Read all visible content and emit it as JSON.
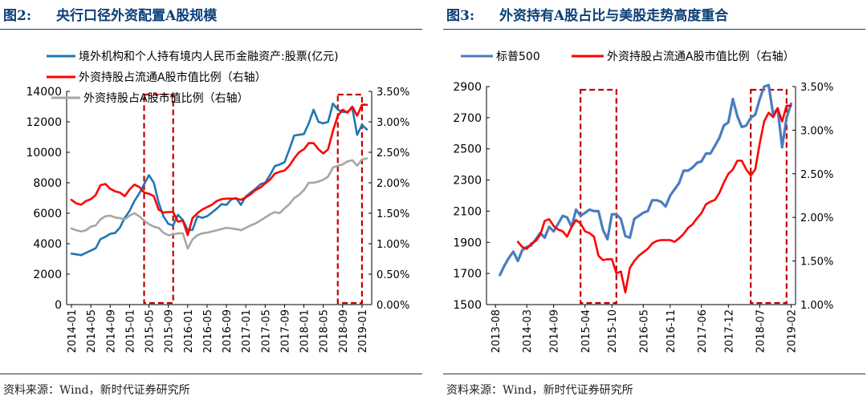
{
  "left": {
    "fig_label": "图2:",
    "title": "央行口径外资配置A股规模",
    "source": "资料来源：Wind，新时代证券研究所",
    "chart_data": {
      "type": "line",
      "x_ticks": [
        "2014-01",
        "2014-05",
        "2014-09",
        "2015-01",
        "2015-05",
        "2015-09",
        "2016-01",
        "2016-05",
        "2016-09",
        "2017-01",
        "2017-05",
        "2017-09",
        "2018-01",
        "2018-05",
        "2018-09",
        "2019-01"
      ],
      "ylim_left": [
        0,
        14000
      ],
      "y_ticks_left": [
        "0",
        "2000",
        "4000",
        "6000",
        "8000",
        "10000",
        "12000",
        "14000"
      ],
      "ylim_right": [
        0,
        3.5
      ],
      "y_ticks_right": [
        "0.00%",
        "0.50%",
        "1.00%",
        "1.50%",
        "2.00%",
        "2.50%",
        "3.00%",
        "3.50%"
      ],
      "series": [
        {
          "name": "境外机构和个人持有境内人民币金融资产:股票(亿元)",
          "color": "#1f77b4",
          "axis": "left",
          "x": [
            "2014-01",
            "2014-02",
            "2014-03",
            "2014-04",
            "2014-05",
            "2014-06",
            "2014-07",
            "2014-08",
            "2014-09",
            "2014-10",
            "2014-11",
            "2014-12",
            "2015-01",
            "2015-02",
            "2015-03",
            "2015-04",
            "2015-05",
            "2015-06",
            "2015-07",
            "2015-08",
            "2015-09",
            "2015-10",
            "2015-11",
            "2015-12",
            "2016-01",
            "2016-02",
            "2016-03",
            "2016-04",
            "2016-05",
            "2016-06",
            "2016-07",
            "2016-08",
            "2016-09",
            "2016-10",
            "2016-11",
            "2016-12",
            "2017-01",
            "2017-02",
            "2017-03",
            "2017-04",
            "2017-05",
            "2017-06",
            "2017-07",
            "2017-08",
            "2017-09",
            "2017-10",
            "2017-11",
            "2017-12",
            "2018-01",
            "2018-02",
            "2018-03",
            "2018-04",
            "2018-05",
            "2018-06",
            "2018-07",
            "2018-08",
            "2018-09",
            "2018-10",
            "2018-11",
            "2018-12",
            "2019-01",
            "2019-02"
          ],
          "values": [
            3350,
            3300,
            3250,
            3400,
            3550,
            3700,
            4300,
            4450,
            4650,
            4700,
            5050,
            5700,
            6150,
            6800,
            7300,
            7900,
            8500,
            8000,
            6700,
            5800,
            5300,
            5200,
            5900,
            5550,
            4900,
            4900,
            5800,
            5700,
            5800,
            6050,
            6300,
            6600,
            6550,
            6900,
            7000,
            6550,
            7100,
            7350,
            7600,
            7900,
            8000,
            8500,
            9100,
            9200,
            9350,
            10200,
            11100,
            11150,
            11200,
            11900,
            12800,
            12000,
            11900,
            12000,
            13200,
            12800,
            12650,
            12650,
            12900,
            11150,
            11800,
            11500
          ]
        },
        {
          "name": "外资持股占流通A股市值比例（右轴）",
          "color": "#ff0000",
          "axis": "right",
          "x": [
            "2014-01",
            "2014-02",
            "2014-03",
            "2014-04",
            "2014-05",
            "2014-06",
            "2014-07",
            "2014-08",
            "2014-09",
            "2014-10",
            "2014-11",
            "2014-12",
            "2015-01",
            "2015-02",
            "2015-03",
            "2015-04",
            "2015-05",
            "2015-06",
            "2015-07",
            "2015-08",
            "2015-09",
            "2015-10",
            "2015-11",
            "2015-12",
            "2016-01",
            "2016-02",
            "2016-03",
            "2016-04",
            "2016-05",
            "2016-06",
            "2016-07",
            "2016-08",
            "2016-09",
            "2016-10",
            "2016-11",
            "2016-12",
            "2017-01",
            "2017-02",
            "2017-03",
            "2017-04",
            "2017-05",
            "2017-06",
            "2017-07",
            "2017-08",
            "2017-09",
            "2017-10",
            "2017-11",
            "2017-12",
            "2018-01",
            "2018-02",
            "2018-03",
            "2018-04",
            "2018-05",
            "2018-06",
            "2018-07",
            "2018-08",
            "2018-09",
            "2018-10",
            "2018-11",
            "2018-12",
            "2019-01",
            "2019-02"
          ],
          "values": [
            1.72,
            1.66,
            1.64,
            1.7,
            1.73,
            1.8,
            1.96,
            1.98,
            1.9,
            1.86,
            1.84,
            1.78,
            1.89,
            1.97,
            1.93,
            1.84,
            1.82,
            1.78,
            1.56,
            1.51,
            1.52,
            1.52,
            1.36,
            1.38,
            1.14,
            1.42,
            1.5,
            1.56,
            1.6,
            1.64,
            1.7,
            1.73,
            1.74,
            1.74,
            1.74,
            1.72,
            1.76,
            1.81,
            1.88,
            1.92,
            1.99,
            2.05,
            2.15,
            2.18,
            2.2,
            2.28,
            2.4,
            2.5,
            2.55,
            2.65,
            2.65,
            2.55,
            2.48,
            2.55,
            2.85,
            3.1,
            3.2,
            3.15,
            3.25,
            3.1,
            3.28,
            3.28
          ]
        },
        {
          "name": "外资持股占A股市值比例（右轴）",
          "color": "#a6a6a6",
          "axis": "right",
          "x": [
            "2014-01",
            "2014-02",
            "2014-03",
            "2014-04",
            "2014-05",
            "2014-06",
            "2014-07",
            "2014-08",
            "2014-09",
            "2014-10",
            "2014-11",
            "2014-12",
            "2015-01",
            "2015-02",
            "2015-03",
            "2015-04",
            "2015-05",
            "2015-06",
            "2015-07",
            "2015-08",
            "2015-09",
            "2015-10",
            "2015-11",
            "2015-12",
            "2016-01",
            "2016-02",
            "2016-03",
            "2016-04",
            "2016-05",
            "2016-06",
            "2016-07",
            "2016-08",
            "2016-09",
            "2016-10",
            "2016-11",
            "2016-12",
            "2017-01",
            "2017-02",
            "2017-03",
            "2017-04",
            "2017-05",
            "2017-06",
            "2017-07",
            "2017-08",
            "2017-09",
            "2017-10",
            "2017-11",
            "2017-12",
            "2018-01",
            "2018-02",
            "2018-03",
            "2018-04",
            "2018-05",
            "2018-06",
            "2018-07",
            "2018-08",
            "2018-09",
            "2018-10",
            "2018-11",
            "2018-12",
            "2019-01",
            "2019-02"
          ],
          "values": [
            1.25,
            1.22,
            1.2,
            1.22,
            1.28,
            1.3,
            1.4,
            1.45,
            1.46,
            1.43,
            1.42,
            1.4,
            1.46,
            1.5,
            1.45,
            1.38,
            1.32,
            1.28,
            1.26,
            1.18,
            1.14,
            1.15,
            1.17,
            1.17,
            0.92,
            1.07,
            1.14,
            1.17,
            1.18,
            1.2,
            1.22,
            1.24,
            1.26,
            1.25,
            1.24,
            1.22,
            1.26,
            1.3,
            1.33,
            1.38,
            1.43,
            1.48,
            1.52,
            1.5,
            1.58,
            1.65,
            1.75,
            1.8,
            1.88,
            2.0,
            2.0,
            2.02,
            2.05,
            2.1,
            2.25,
            2.28,
            2.3,
            2.35,
            2.37,
            2.28,
            2.38,
            2.4
          ]
        }
      ],
      "annotations": [
        {
          "type": "dashed-rect",
          "x_from": "2015-04",
          "x_to": "2015-10",
          "color": "#c00000"
        },
        {
          "type": "dashed-rect",
          "x_from": "2018-08",
          "x_to": "2019-01",
          "color": "#c00000"
        }
      ],
      "legend": "top-left",
      "grid": false
    }
  },
  "right": {
    "fig_label": "图3:",
    "title": "外资持有A股占比与美股走势高度重合",
    "source": "资料来源：Wind，新时代证券研究所",
    "chart_data": {
      "type": "line",
      "x_ticks": [
        "2013-08",
        "2014-03",
        "2014-09",
        "2015-04",
        "2015-10",
        "2016-05",
        "2016-11",
        "2017-06",
        "2017-12",
        "2018-07",
        "2019-02"
      ],
      "ylim_left": [
        1500,
        2900
      ],
      "y_ticks_left": [
        "1500",
        "1700",
        "1900",
        "2100",
        "2300",
        "2500",
        "2700",
        "2900"
      ],
      "ylim_right": [
        1.0,
        3.5
      ],
      "y_ticks_right": [
        "1.00%",
        "1.50%",
        "2.00%",
        "2.50%",
        "3.00%",
        "3.50%"
      ],
      "series": [
        {
          "name": "标普500",
          "color": "#4a7dbf",
          "axis": "left",
          "x": [
            "2013-09",
            "2013-10",
            "2013-11",
            "2013-12",
            "2014-01",
            "2014-02",
            "2014-03",
            "2014-04",
            "2014-05",
            "2014-06",
            "2014-07",
            "2014-08",
            "2014-09",
            "2014-10",
            "2014-11",
            "2014-12",
            "2015-01",
            "2015-02",
            "2015-03",
            "2015-04",
            "2015-05",
            "2015-06",
            "2015-07",
            "2015-08",
            "2015-09",
            "2015-10",
            "2015-11",
            "2015-12",
            "2016-01",
            "2016-02",
            "2016-03",
            "2016-04",
            "2016-05",
            "2016-06",
            "2016-07",
            "2016-08",
            "2016-09",
            "2016-10",
            "2016-11",
            "2016-12",
            "2017-01",
            "2017-02",
            "2017-03",
            "2017-04",
            "2017-05",
            "2017-06",
            "2017-07",
            "2017-08",
            "2017-09",
            "2017-10",
            "2017-11",
            "2017-12",
            "2018-01",
            "2018-02",
            "2018-03",
            "2018-04",
            "2018-05",
            "2018-06",
            "2018-07",
            "2018-08",
            "2018-09",
            "2018-10",
            "2018-11",
            "2018-12",
            "2019-01",
            "2019-02"
          ],
          "values": [
            1690,
            1750,
            1800,
            1840,
            1780,
            1850,
            1870,
            1880,
            1920,
            1960,
            1930,
            2000,
            1970,
            2020,
            2070,
            2060,
            2000,
            2110,
            2070,
            2090,
            2110,
            2100,
            2100,
            1980,
            1920,
            2080,
            2080,
            2050,
            1940,
            1930,
            2050,
            2070,
            2090,
            2100,
            2170,
            2170,
            2160,
            2130,
            2200,
            2240,
            2280,
            2360,
            2360,
            2380,
            2410,
            2420,
            2470,
            2470,
            2520,
            2570,
            2650,
            2670,
            2820,
            2710,
            2640,
            2650,
            2700,
            2720,
            2820,
            2900,
            2910,
            2720,
            2760,
            2510,
            2700,
            2790
          ]
        },
        {
          "name": "外资持股占流通A股市值比例（右轴）",
          "color": "#ff0000",
          "axis": "right",
          "x": [
            "2014-01",
            "2014-02",
            "2014-03",
            "2014-04",
            "2014-05",
            "2014-06",
            "2014-07",
            "2014-08",
            "2014-09",
            "2014-10",
            "2014-11",
            "2014-12",
            "2015-01",
            "2015-02",
            "2015-03",
            "2015-04",
            "2015-05",
            "2015-06",
            "2015-07",
            "2015-08",
            "2015-09",
            "2015-10",
            "2015-11",
            "2015-12",
            "2016-01",
            "2016-02",
            "2016-03",
            "2016-04",
            "2016-05",
            "2016-06",
            "2016-07",
            "2016-08",
            "2016-09",
            "2016-10",
            "2016-11",
            "2016-12",
            "2017-01",
            "2017-02",
            "2017-03",
            "2017-04",
            "2017-05",
            "2017-06",
            "2017-07",
            "2017-08",
            "2017-09",
            "2017-10",
            "2017-11",
            "2017-12",
            "2018-01",
            "2018-02",
            "2018-03",
            "2018-04",
            "2018-05",
            "2018-06",
            "2018-07",
            "2018-08",
            "2018-09",
            "2018-10",
            "2018-11",
            "2018-12",
            "2019-01",
            "2019-02"
          ],
          "values": [
            1.72,
            1.66,
            1.64,
            1.7,
            1.73,
            1.8,
            1.96,
            1.98,
            1.9,
            1.86,
            1.84,
            1.78,
            1.89,
            1.97,
            1.93,
            1.84,
            1.82,
            1.78,
            1.56,
            1.51,
            1.52,
            1.52,
            1.36,
            1.38,
            1.14,
            1.42,
            1.5,
            1.56,
            1.6,
            1.64,
            1.7,
            1.73,
            1.74,
            1.74,
            1.74,
            1.72,
            1.76,
            1.81,
            1.88,
            1.92,
            1.99,
            2.05,
            2.15,
            2.18,
            2.2,
            2.28,
            2.4,
            2.5,
            2.55,
            2.65,
            2.65,
            2.55,
            2.48,
            2.55,
            2.85,
            3.1,
            3.2,
            3.15,
            3.25,
            3.1,
            3.28,
            3.28
          ]
        }
      ],
      "annotations": [
        {
          "type": "dashed-rect",
          "x_from": "2015-03",
          "x_to": "2015-11",
          "color": "#c00000"
        },
        {
          "type": "dashed-rect",
          "x_from": "2018-05",
          "x_to": "2019-01",
          "color": "#c00000"
        }
      ],
      "legend": "top",
      "grid": false
    }
  }
}
